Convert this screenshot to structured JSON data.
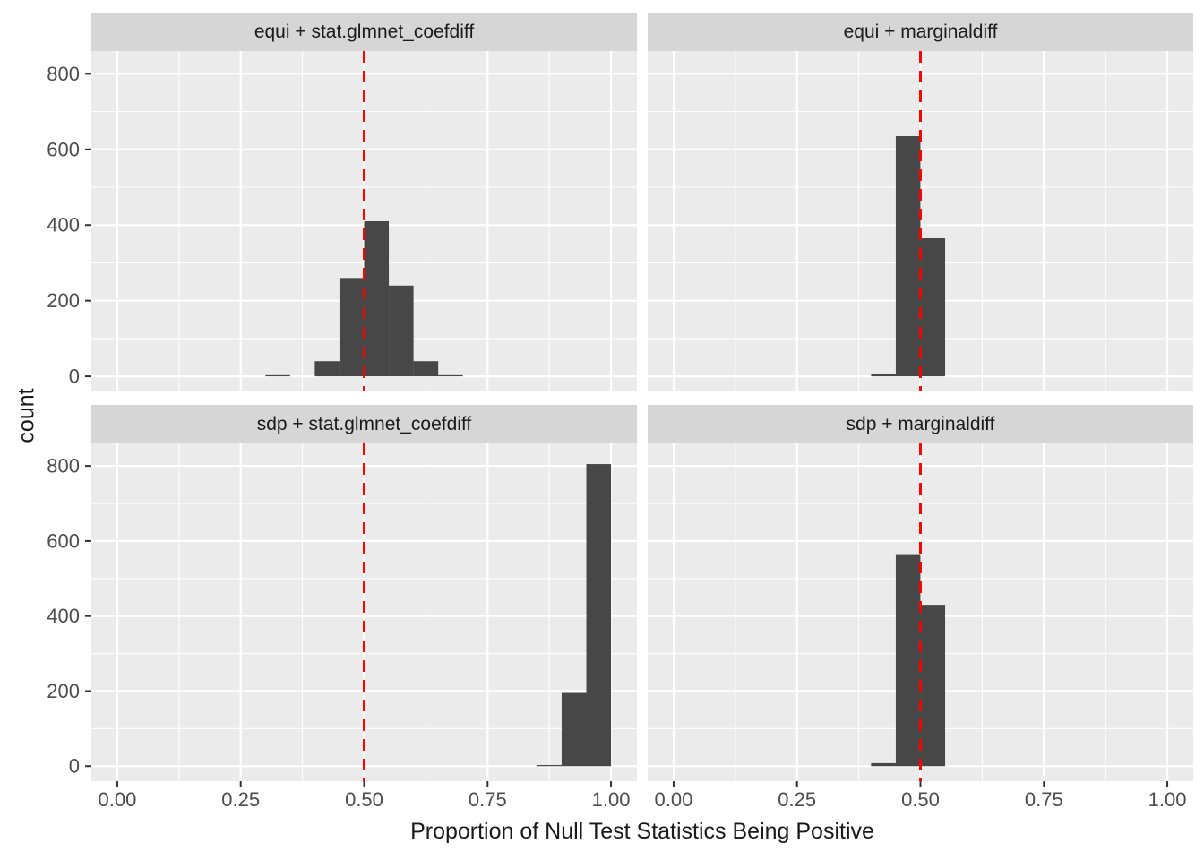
{
  "chart_data": {
    "type": "bar",
    "subtype": "faceted-histogram",
    "title": "",
    "xlabel": "Proportion of Null Test Statistics Being Positive",
    "ylabel": "count",
    "x_tick_labels": [
      "0.00",
      "0.25",
      "0.50",
      "0.75",
      "1.00"
    ],
    "x_tick_values": [
      0,
      0.25,
      0.5,
      0.75,
      1.0
    ],
    "y_tick_labels": [
      "0",
      "200",
      "400",
      "600",
      "800"
    ],
    "y_tick_values": [
      0,
      200,
      400,
      600,
      800
    ],
    "x_minor_values": [
      0.125,
      0.375,
      0.625,
      0.875
    ],
    "y_minor_values": [
      100,
      300,
      500,
      700
    ],
    "xlim": [
      -0.0525,
      1.0525
    ],
    "ylim": [
      -40,
      860
    ],
    "binwidth": 0.05,
    "vline_x": 0.5,
    "grid": "on",
    "legend": "none",
    "facets": [
      {
        "label": "equi + stat.glmnet_coefdiff",
        "row": 0,
        "col": 0,
        "bins": [
          {
            "x0": 0.3,
            "count": 3
          },
          {
            "x0": 0.4,
            "count": 40
          },
          {
            "x0": 0.45,
            "count": 260
          },
          {
            "x0": 0.5,
            "count": 410
          },
          {
            "x0": 0.55,
            "count": 240
          },
          {
            "x0": 0.6,
            "count": 40
          },
          {
            "x0": 0.65,
            "count": 3
          }
        ]
      },
      {
        "label": "equi + marginaldiff",
        "row": 0,
        "col": 1,
        "bins": [
          {
            "x0": 0.4,
            "count": 5
          },
          {
            "x0": 0.45,
            "count": 635
          },
          {
            "x0": 0.5,
            "count": 365
          }
        ]
      },
      {
        "label": "sdp + stat.glmnet_coefdiff",
        "row": 1,
        "col": 0,
        "bins": [
          {
            "x0": 0.85,
            "count": 3
          },
          {
            "x0": 0.9,
            "count": 195
          },
          {
            "x0": 0.95,
            "count": 805
          }
        ]
      },
      {
        "label": "sdp + marginaldiff",
        "row": 1,
        "col": 1,
        "bins": [
          {
            "x0": 0.4,
            "count": 8
          },
          {
            "x0": 0.45,
            "count": 565
          },
          {
            "x0": 0.5,
            "count": 430
          }
        ]
      }
    ],
    "colors": {
      "bar_fill": "#474747",
      "panel_bg": "#EBEBEB",
      "strip_bg": "#D6D6D6",
      "grid_line": "#FFFFFF",
      "vline": "#FF0000",
      "tick_label": "#4D4D4D",
      "axis_title": "#1A1A1A",
      "strip_text": "#1A1A1A",
      "tick_mark": "#333333"
    }
  }
}
